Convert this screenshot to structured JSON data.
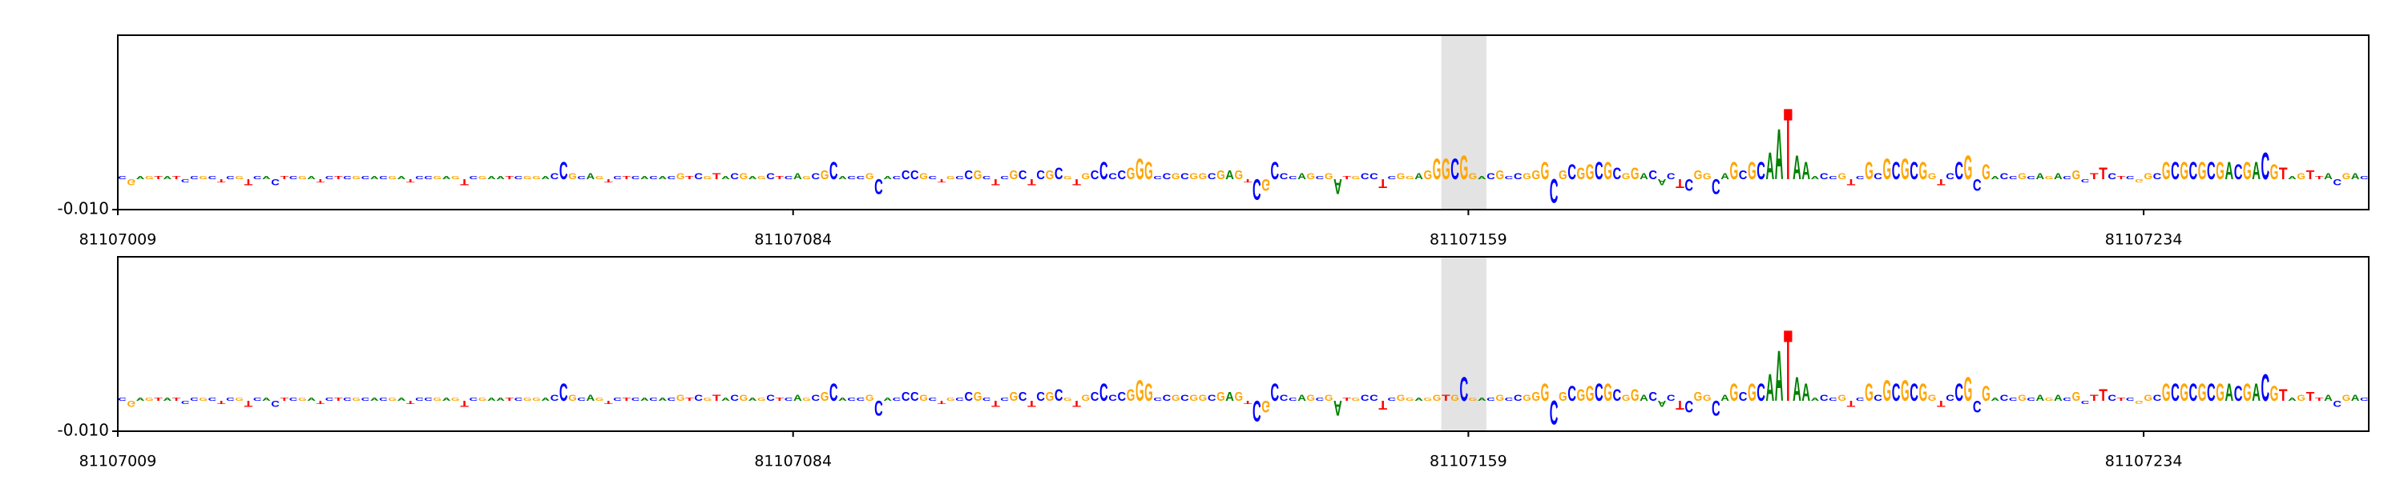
{
  "chart_data": [
    {
      "type": "logo",
      "sequence": "CGAGTATCCGCTCGTCACTCGATCTCGCACGATCCGAGTCGAATCGGACCGCAGTCTCACACGTCGTACGAGCTCAGCGCACCGCACCCGCTGCCGCTCGCTCGCGTGCCCCGGGCCGCGGCGAGTCGCCCAGCGATGCCTCGGAGGGCGGACGCCGGGCGCGGCGCGGACACTCGGCAGCGCAATAAACCGTCGCGCGCGGTCCGCGACCGCAGACGCTTCTCGGCGCGCGCGACGACGTAGTTACGAC",
      "values": [
        0.001,
        -0.002,
        0.001,
        0.001,
        0.001,
        0.001,
        0.001,
        -0.001,
        0.001,
        0.001,
        0.001,
        -0.001,
        0.001,
        0.001,
        -0.002,
        0.001,
        0.001,
        -0.002,
        0.001,
        0.001,
        0.001,
        0.001,
        -0.001,
        0.001,
        0.001,
        0.001,
        0.001,
        0.001,
        0.001,
        0.001,
        0.001,
        0.001,
        -0.001,
        0.001,
        0.001,
        0.001,
        0.001,
        0.001,
        -0.002,
        0.001,
        0.001,
        0.001,
        0.001,
        0.001,
        0.001,
        0.001,
        0.001,
        0.001,
        0.002,
        0.006,
        0.002,
        0.001,
        0.002,
        0.001,
        -0.001,
        0.001,
        0.001,
        0.001,
        0.001,
        0.001,
        0.001,
        0.001,
        0.002,
        0.001,
        0.002,
        0.001,
        0.002,
        0.001,
        0.002,
        0.002,
        0.001,
        0.001,
        0.002,
        0.001,
        0.001,
        0.002,
        0.001,
        0.002,
        0.003,
        0.006,
        0.001,
        0.001,
        0.001,
        0.002,
        -0.005,
        0.001,
        0.001,
        0.003,
        0.003,
        0.002,
        0.001,
        -0.001,
        0.001,
        0.001,
        0.003,
        0.003,
        0.001,
        -0.002,
        0.001,
        0.003,
        0.003,
        -0.002,
        0.003,
        0.003,
        0.004,
        0.001,
        -0.002,
        0.002,
        0.003,
        0.006,
        0.002,
        0.003,
        0.004,
        0.007,
        0.006,
        0.001,
        0.002,
        0.002,
        0.002,
        0.002,
        0.002,
        0.002,
        0.003,
        0.003,
        0.003,
        -0.001,
        -0.007,
        -0.004,
        0.006,
        0.002,
        0.001,
        0.002,
        0.002,
        0.001,
        0.002,
        -0.005,
        0.001,
        0.001,
        0.002,
        0.002,
        -0.003,
        0.001,
        0.002,
        0.001,
        0.002,
        0.003,
        0.007,
        0.007,
        0.007,
        0.008,
        0.002,
        0.001,
        0.002,
        0.003,
        0.001,
        0.002,
        0.002,
        0.003,
        0.006,
        -0.008,
        0.003,
        0.005,
        0.004,
        0.005,
        0.006,
        0.006,
        0.004,
        0.002,
        0.004,
        0.002,
        0.003,
        -0.002,
        0.002,
        -0.003,
        -0.004,
        0.003,
        0.002,
        -0.005,
        0.002,
        0.006,
        0.003,
        0.006,
        0.006,
        0.009,
        0.017,
        0.024,
        0.008,
        0.006,
        0.001,
        0.002,
        0.001,
        0.002,
        -0.002,
        0.001,
        0.006,
        0.002,
        0.007,
        0.006,
        0.007,
        0.006,
        0.006,
        0.002,
        -0.002,
        0.002,
        0.006,
        0.008,
        -0.004,
        0.005,
        0.001,
        0.002,
        0.001,
        0.002,
        0.001,
        0.002,
        0.001,
        0.002,
        0.001,
        0.003,
        -0.001,
        0.002,
        0.004,
        0.002,
        0.001,
        0.001,
        -0.001,
        0.002,
        0.002,
        0.006,
        0.006,
        0.006,
        0.006,
        0.006,
        0.006,
        0.006,
        0.006,
        0.005,
        0.006,
        0.006,
        0.009,
        0.005,
        0.004,
        0.001,
        0.002,
        0.003,
        0.001,
        0.002,
        -0.002,
        0.002,
        0.002,
        0.001
      ],
      "colors": {
        "A": "#008000",
        "C": "#0000ff",
        "G": "#ffa500",
        "T": "#ff0000"
      },
      "xlim": [
        81107009,
        81107259
      ],
      "xticks": [
        81107009,
        81107084,
        81107159,
        81107234
      ],
      "ylim": [
        -0.01,
        0.047
      ],
      "yticks": [
        {
          "value": -0.01,
          "label": "-0.010"
        }
      ],
      "highlight": [
        81107156,
        81107161
      ]
    },
    {
      "type": "logo",
      "sequence": "CGAGTATCCGCTCGTCACTCGATCTCGCACGATCCGAGTCGAATCGGACCGCAGTCTCACACGTCGTACGAGCTCAGCGCACCGCACCCGCTGCCGCTCGCTCGCGTGCCCCGGGCCGCGGCGAGTCGCCCAGCGATGCCTCGGAGGTGCGACGCCGGGCGCGGCGCGGACACTCGGCAGCGCAATAAACCGTCGCGCGCGGTCCGCGACCGCAGACGCTTCTCGGCGCGCGCGACGACGTAGTTACGAC",
      "values": [
        0.001,
        -0.002,
        0.001,
        0.001,
        0.001,
        0.001,
        0.001,
        -0.001,
        0.001,
        0.001,
        0.001,
        -0.001,
        0.001,
        0.001,
        -0.002,
        0.001,
        0.001,
        -0.002,
        0.001,
        0.001,
        0.001,
        0.001,
        -0.001,
        0.001,
        0.001,
        0.001,
        0.001,
        0.001,
        0.001,
        0.001,
        0.001,
        0.001,
        -0.001,
        0.001,
        0.001,
        0.001,
        0.001,
        0.001,
        -0.002,
        0.001,
        0.001,
        0.001,
        0.001,
        0.001,
        0.001,
        0.001,
        0.001,
        0.001,
        0.002,
        0.006,
        0.002,
        0.001,
        0.002,
        0.001,
        -0.001,
        0.001,
        0.001,
        0.001,
        0.001,
        0.001,
        0.001,
        0.001,
        0.002,
        0.001,
        0.002,
        0.001,
        0.002,
        0.001,
        0.002,
        0.002,
        0.001,
        0.001,
        0.002,
        0.001,
        0.001,
        0.002,
        0.001,
        0.002,
        0.003,
        0.006,
        0.001,
        0.001,
        0.001,
        0.002,
        -0.005,
        0.001,
        0.001,
        0.003,
        0.003,
        0.002,
        0.001,
        -0.001,
        0.001,
        0.001,
        0.003,
        0.003,
        0.001,
        -0.002,
        0.001,
        0.003,
        0.003,
        -0.002,
        0.003,
        0.003,
        0.004,
        0.001,
        -0.002,
        0.002,
        0.003,
        0.006,
        0.002,
        0.003,
        0.004,
        0.007,
        0.006,
        0.001,
        0.002,
        0.002,
        0.002,
        0.002,
        0.002,
        0.002,
        0.003,
        0.003,
        0.003,
        -0.001,
        -0.007,
        -0.004,
        0.006,
        0.002,
        0.001,
        0.002,
        0.002,
        0.001,
        0.002,
        -0.005,
        0.001,
        0.001,
        0.002,
        0.002,
        -0.003,
        0.001,
        0.002,
        0.001,
        0.001,
        0.001,
        0.002,
        0.002,
        0.002,
        0.008,
        0.001,
        0.001,
        0.001,
        0.002,
        0.001,
        0.002,
        0.002,
        0.003,
        0.006,
        -0.008,
        0.003,
        0.005,
        0.004,
        0.005,
        0.006,
        0.006,
        0.004,
        0.002,
        0.004,
        0.002,
        0.003,
        -0.002,
        0.002,
        -0.003,
        -0.004,
        0.003,
        0.002,
        -0.005,
        0.002,
        0.006,
        0.003,
        0.006,
        0.006,
        0.009,
        0.017,
        0.024,
        0.008,
        0.006,
        0.001,
        0.002,
        0.001,
        0.002,
        -0.002,
        0.001,
        0.006,
        0.002,
        0.007,
        0.006,
        0.007,
        0.006,
        0.006,
        0.002,
        -0.002,
        0.002,
        0.006,
        0.008,
        -0.004,
        0.005,
        0.001,
        0.002,
        0.001,
        0.002,
        0.001,
        0.002,
        0.001,
        0.002,
        0.001,
        0.003,
        -0.001,
        0.002,
        0.004,
        0.002,
        0.001,
        0.001,
        -0.001,
        0.002,
        0.002,
        0.006,
        0.006,
        0.006,
        0.006,
        0.006,
        0.006,
        0.006,
        0.006,
        0.005,
        0.006,
        0.006,
        0.009,
        0.005,
        0.004,
        0.001,
        0.002,
        0.003,
        0.001,
        0.002,
        -0.002,
        0.002,
        0.002,
        0.001
      ],
      "colors": {
        "A": "#008000",
        "C": "#0000ff",
        "G": "#ffa500",
        "T": "#ff0000"
      },
      "xlim": [
        81107009,
        81107259
      ],
      "xticks": [
        81107009,
        81107084,
        81107159,
        81107234
      ],
      "ylim": [
        -0.01,
        0.047
      ],
      "yticks": [
        {
          "value": -0.01,
          "label": "-0.010"
        }
      ],
      "highlight": [
        81107156,
        81107161
      ]
    }
  ]
}
